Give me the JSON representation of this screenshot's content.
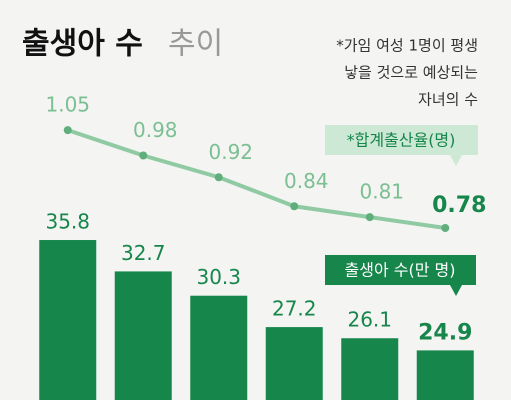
{
  "chart_data": {
    "type": "bar-line",
    "title": "출생아 수",
    "title_light": "추이",
    "note": [
      "*가임 여성 1명이 평생",
      "낳을 것으로 예상되는",
      "자녀의 수"
    ],
    "categories": [
      null,
      null,
      null,
      null,
      null,
      null
    ],
    "series": [
      {
        "name": "출생아 수(만 명)",
        "type": "bar",
        "color": "#16864b",
        "values": [
          35.8,
          32.7,
          30.3,
          27.2,
          26.1,
          24.9
        ]
      },
      {
        "name": "*합계출산율(명)",
        "type": "line",
        "axis": "y2",
        "color": "#8fcaa3",
        "values": [
          1.05,
          0.98,
          0.92,
          0.84,
          0.81,
          0.78
        ]
      }
    ],
    "ylim": [
      20,
      36
    ],
    "y2lim": [
      0.7,
      1.1
    ]
  }
}
